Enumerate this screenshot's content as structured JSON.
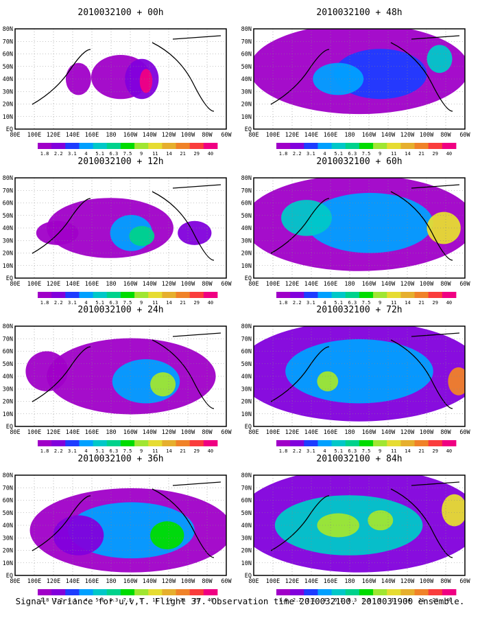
{
  "figure": {
    "caption": "Signal Variance for u,v,T. Flight 37. Observation time 2010032100. 2010031900 ensemble."
  },
  "chart_data": {
    "type": "heatmap",
    "x_ticks": [
      "80E",
      "100E",
      "120E",
      "140E",
      "160E",
      "180",
      "160W",
      "140W",
      "120W",
      "100W",
      "80W",
      "60W"
    ],
    "y_ticks": [
      "EQ",
      "10N",
      "20N",
      "30N",
      "40N",
      "50N",
      "60N",
      "70N",
      "80N"
    ],
    "colorbar": {
      "labels": [
        "1.8",
        "2.2",
        "3.1",
        "4",
        "5.1",
        "6.3",
        "7.5",
        "9",
        "11",
        "14",
        "21",
        "29",
        "40"
      ],
      "colors": [
        "#a000c8",
        "#8200dc",
        "#1e3cff",
        "#00a0ff",
        "#00c8c8",
        "#00d28c",
        "#00dc00",
        "#a0e632",
        "#e6dc32",
        "#e6af2d",
        "#f08228",
        "#fa3c3c",
        "#f00082"
      ]
    },
    "panels": [
      {
        "title": "2010032100 + 00h",
        "lead_hours": 0,
        "column": "left",
        "row": 1
      },
      {
        "title": "2010032100 + 12h",
        "lead_hours": 12,
        "column": "left",
        "row": 2
      },
      {
        "title": "2010032100 + 24h",
        "lead_hours": 24,
        "column": "left",
        "row": 3
      },
      {
        "title": "2010032100 + 36h",
        "lead_hours": 36,
        "column": "left",
        "row": 4
      },
      {
        "title": "2010032100 + 48h",
        "lead_hours": 48,
        "column": "right",
        "row": 1
      },
      {
        "title": "2010032100 + 60h",
        "lead_hours": 60,
        "column": "right",
        "row": 2
      },
      {
        "title": "2010032100 + 72h",
        "lead_hours": 72,
        "column": "right",
        "row": 3
      },
      {
        "title": "2010032100 + 84h",
        "lead_hours": 84,
        "column": "right",
        "row": 4
      }
    ]
  }
}
